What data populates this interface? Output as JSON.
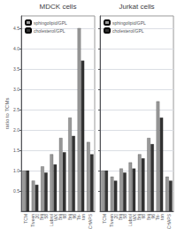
{
  "chart_data": [
    {
      "type": "bar",
      "title": "MDCK cells",
      "ylabel": "ratio to TCMs",
      "categories": [
        "TCM",
        "Tween\n20",
        "Brij\n58",
        "Lubrol\nWX",
        "Brij\n98",
        "Brij\n96",
        "Tri-\nton",
        "CHAPS"
      ],
      "series": [
        {
          "name": "sphingolipid/GPL",
          "color": "#999999",
          "values": [
            1.0,
            0.75,
            1.1,
            1.4,
            1.8,
            2.3,
            4.5,
            1.7
          ]
        },
        {
          "name": "cholesterol/GPL",
          "color": "#333333",
          "values": [
            1.0,
            0.65,
            0.95,
            1.15,
            1.45,
            1.85,
            3.7,
            1.4
          ]
        }
      ],
      "ylim": [
        0,
        4.8
      ],
      "yticks": [
        0.5,
        {
          "value": 1,
          "label": "1.0"
        },
        1.5,
        {
          "value": 2,
          "label": "2.0"
        },
        2.5,
        {
          "value": 3,
          "label": "3.0"
        },
        3.5,
        {
          "value": 4,
          "label": "4.0"
        },
        4.5
      ],
      "grid": true,
      "legend": "upper left"
    },
    {
      "type": "bar",
      "title": "Jurkat cells",
      "categories": [
        "TCM",
        "Tween\n20",
        "Brij\n58",
        "Lubrol\nWX",
        "Brij\n98",
        "Brij\n96",
        "Tri-\nton",
        "CHAPS"
      ],
      "series": [
        {
          "name": "sphingolipid/GPL",
          "color": "#999999",
          "values": [
            1.0,
            0.85,
            1.05,
            1.2,
            1.4,
            1.8,
            2.7,
            0.85
          ]
        },
        {
          "name": "cholesterol/GPL",
          "color": "#333333",
          "values": [
            1.0,
            0.75,
            0.95,
            1.05,
            1.3,
            1.65,
            2.3,
            0.75
          ]
        }
      ],
      "ylim": [
        0,
        4.8
      ],
      "yticks": [
        0.5,
        1,
        1.5,
        2,
        2.5,
        3,
        3.5,
        4,
        4.5
      ],
      "grid": true,
      "legend": "upper left",
      "tick_labels": "x"
    }
  ]
}
